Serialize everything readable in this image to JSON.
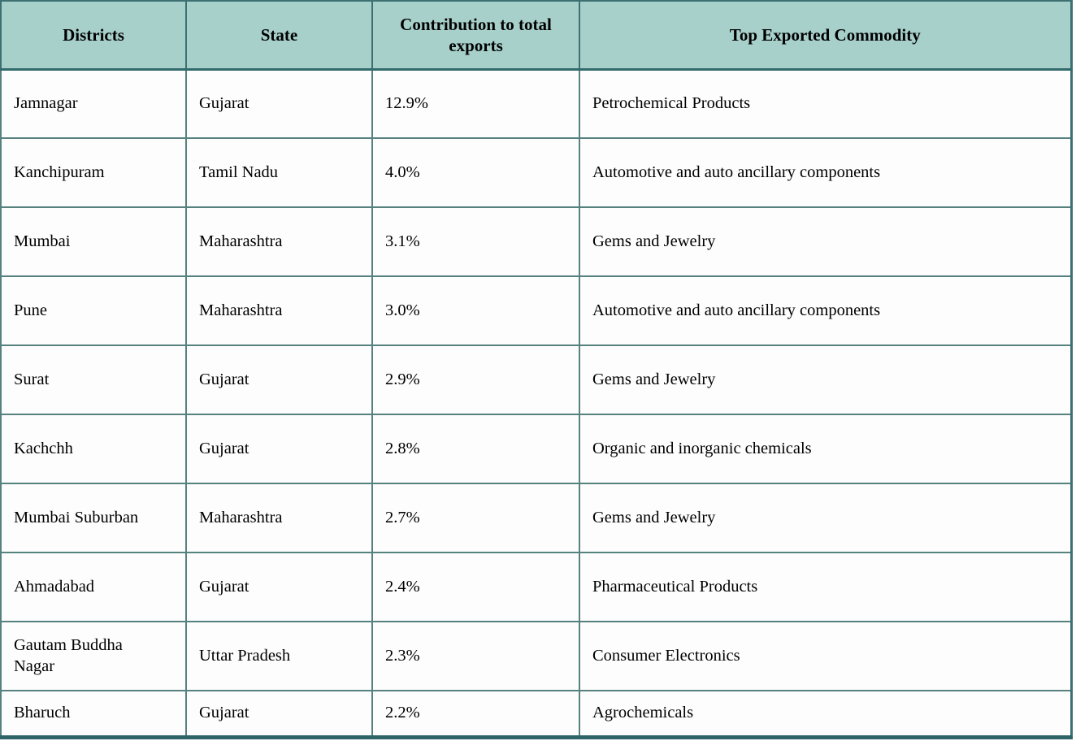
{
  "table": {
    "columns": [
      {
        "label": "Districts"
      },
      {
        "label": "State"
      },
      {
        "label": "Contribution to total exports"
      },
      {
        "label": "Top Exported Commodity"
      }
    ],
    "rows": [
      {
        "district": "Jamnagar",
        "state": "Gujarat",
        "contribution": "12.9%",
        "commodity": "Petrochemical Products"
      },
      {
        "district": "Kanchipuram",
        "state": "Tamil Nadu",
        "contribution": "4.0%",
        "commodity": "Automotive and auto ancillary components"
      },
      {
        "district": "Mumbai",
        "state": "Maharashtra",
        "contribution": "3.1%",
        "commodity": "Gems and Jewelry"
      },
      {
        "district": "Pune",
        "state": "Maharashtra",
        "contribution": "3.0%",
        "commodity": "Automotive and auto ancillary components"
      },
      {
        "district": "Surat",
        "state": "Gujarat",
        "contribution": "2.9%",
        "commodity": "Gems and Jewelry"
      },
      {
        "district": "Kachchh",
        "state": "Gujarat",
        "contribution": "2.8%",
        "commodity": "Organic and inorganic chemicals"
      },
      {
        "district": "Mumbai Suburban",
        "state": "Maharashtra",
        "contribution": "2.7%",
        "commodity": "Gems and Jewelry"
      },
      {
        "district": "Ahmadabad",
        "state": "Gujarat",
        "contribution": "2.4%",
        "commodity": "Pharmaceutical Products"
      },
      {
        "district": "Gautam Buddha Nagar",
        "state": "Uttar Pradesh",
        "contribution": "2.3%",
        "commodity": "Consumer Electronics"
      },
      {
        "district": "Bharuch",
        "state": "Gujarat",
        "contribution": "2.2%",
        "commodity": "Agrochemicals"
      }
    ]
  },
  "colors": {
    "header_background": "#a7d0cb",
    "grid_border": "#55817f",
    "header_border": "#3d7073",
    "heavy_bottom_border": "#2f6467",
    "cell_background": "#fdfdfd",
    "text": "#000000"
  }
}
